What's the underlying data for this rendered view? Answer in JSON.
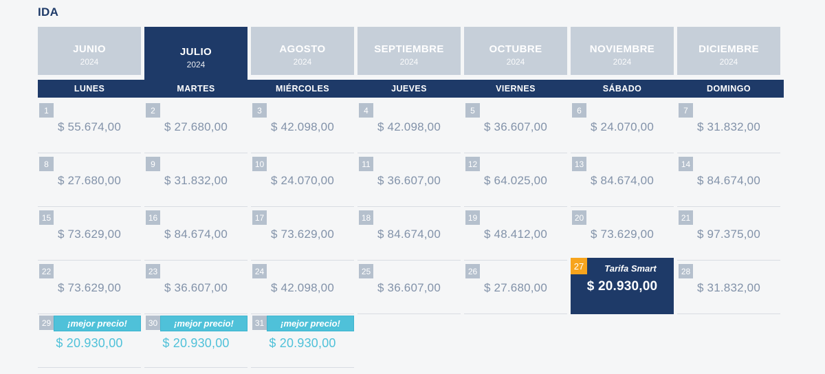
{
  "page": {
    "title": "IDA"
  },
  "colors": {
    "navy": "#1e3a68",
    "tab_inactive": "#c6cfd9",
    "badge": "#b5c0cd",
    "price_text": "#8292a9",
    "teal": "#4fc1d9",
    "orange": "#f7a41d",
    "background": "#f5f6f7"
  },
  "tabs": [
    {
      "month": "JUNIO",
      "year": "2024",
      "selected": false
    },
    {
      "month": "JULIO",
      "year": "2024",
      "selected": true
    },
    {
      "month": "AGOSTO",
      "year": "2024",
      "selected": false
    },
    {
      "month": "SEPTIEMBRE",
      "year": "2024",
      "selected": false
    },
    {
      "month": "OCTUBRE",
      "year": "2024",
      "selected": false
    },
    {
      "month": "NOVIEMBRE",
      "year": "2024",
      "selected": false
    },
    {
      "month": "DICIEMBRE",
      "year": "2024",
      "selected": false
    }
  ],
  "weekdays": [
    "LUNES",
    "MARTES",
    "MIÉRCOLES",
    "JUEVES",
    "VIERNES",
    "SÁBADO",
    "DOMINGO"
  ],
  "calendar": {
    "selected_label": "Tarifa Smart",
    "best_price_label": "¡mejor precio!",
    "weeks": [
      [
        {
          "day": "1",
          "price": "$ 55.674,00",
          "type": "normal"
        },
        {
          "day": "2",
          "price": "$ 27.680,00",
          "type": "normal"
        },
        {
          "day": "3",
          "price": "$ 42.098,00",
          "type": "normal"
        },
        {
          "day": "4",
          "price": "$ 42.098,00",
          "type": "normal"
        },
        {
          "day": "5",
          "price": "$ 36.607,00",
          "type": "normal"
        },
        {
          "day": "6",
          "price": "$ 24.070,00",
          "type": "normal"
        },
        {
          "day": "7",
          "price": "$ 31.832,00",
          "type": "normal"
        }
      ],
      [
        {
          "day": "8",
          "price": "$ 27.680,00",
          "type": "normal"
        },
        {
          "day": "9",
          "price": "$ 31.832,00",
          "type": "normal"
        },
        {
          "day": "10",
          "price": "$ 24.070,00",
          "type": "normal"
        },
        {
          "day": "11",
          "price": "$ 36.607,00",
          "type": "normal"
        },
        {
          "day": "12",
          "price": "$ 64.025,00",
          "type": "normal"
        },
        {
          "day": "13",
          "price": "$ 84.674,00",
          "type": "normal"
        },
        {
          "day": "14",
          "price": "$ 84.674,00",
          "type": "normal"
        }
      ],
      [
        {
          "day": "15",
          "price": "$ 73.629,00",
          "type": "normal"
        },
        {
          "day": "16",
          "price": "$ 84.674,00",
          "type": "normal"
        },
        {
          "day": "17",
          "price": "$ 73.629,00",
          "type": "normal"
        },
        {
          "day": "18",
          "price": "$ 84.674,00",
          "type": "normal"
        },
        {
          "day": "19",
          "price": "$ 48.412,00",
          "type": "normal"
        },
        {
          "day": "20",
          "price": "$ 73.629,00",
          "type": "normal"
        },
        {
          "day": "21",
          "price": "$ 97.375,00",
          "type": "normal"
        }
      ],
      [
        {
          "day": "22",
          "price": "$ 73.629,00",
          "type": "normal"
        },
        {
          "day": "23",
          "price": "$ 36.607,00",
          "type": "normal"
        },
        {
          "day": "24",
          "price": "$ 42.098,00",
          "type": "normal"
        },
        {
          "day": "25",
          "price": "$ 36.607,00",
          "type": "normal"
        },
        {
          "day": "26",
          "price": "$ 27.680,00",
          "type": "normal"
        },
        {
          "day": "27",
          "price": "$ 20.930,00",
          "type": "smart"
        },
        {
          "day": "28",
          "price": "$ 31.832,00",
          "type": "normal"
        }
      ],
      [
        {
          "day": "29",
          "price": "$ 20.930,00",
          "type": "best"
        },
        {
          "day": "30",
          "price": "$ 20.930,00",
          "type": "best"
        },
        {
          "day": "31",
          "price": "$ 20.930,00",
          "type": "best"
        },
        {
          "type": "empty"
        },
        {
          "type": "empty"
        },
        {
          "type": "empty"
        },
        {
          "type": "empty"
        }
      ]
    ]
  }
}
